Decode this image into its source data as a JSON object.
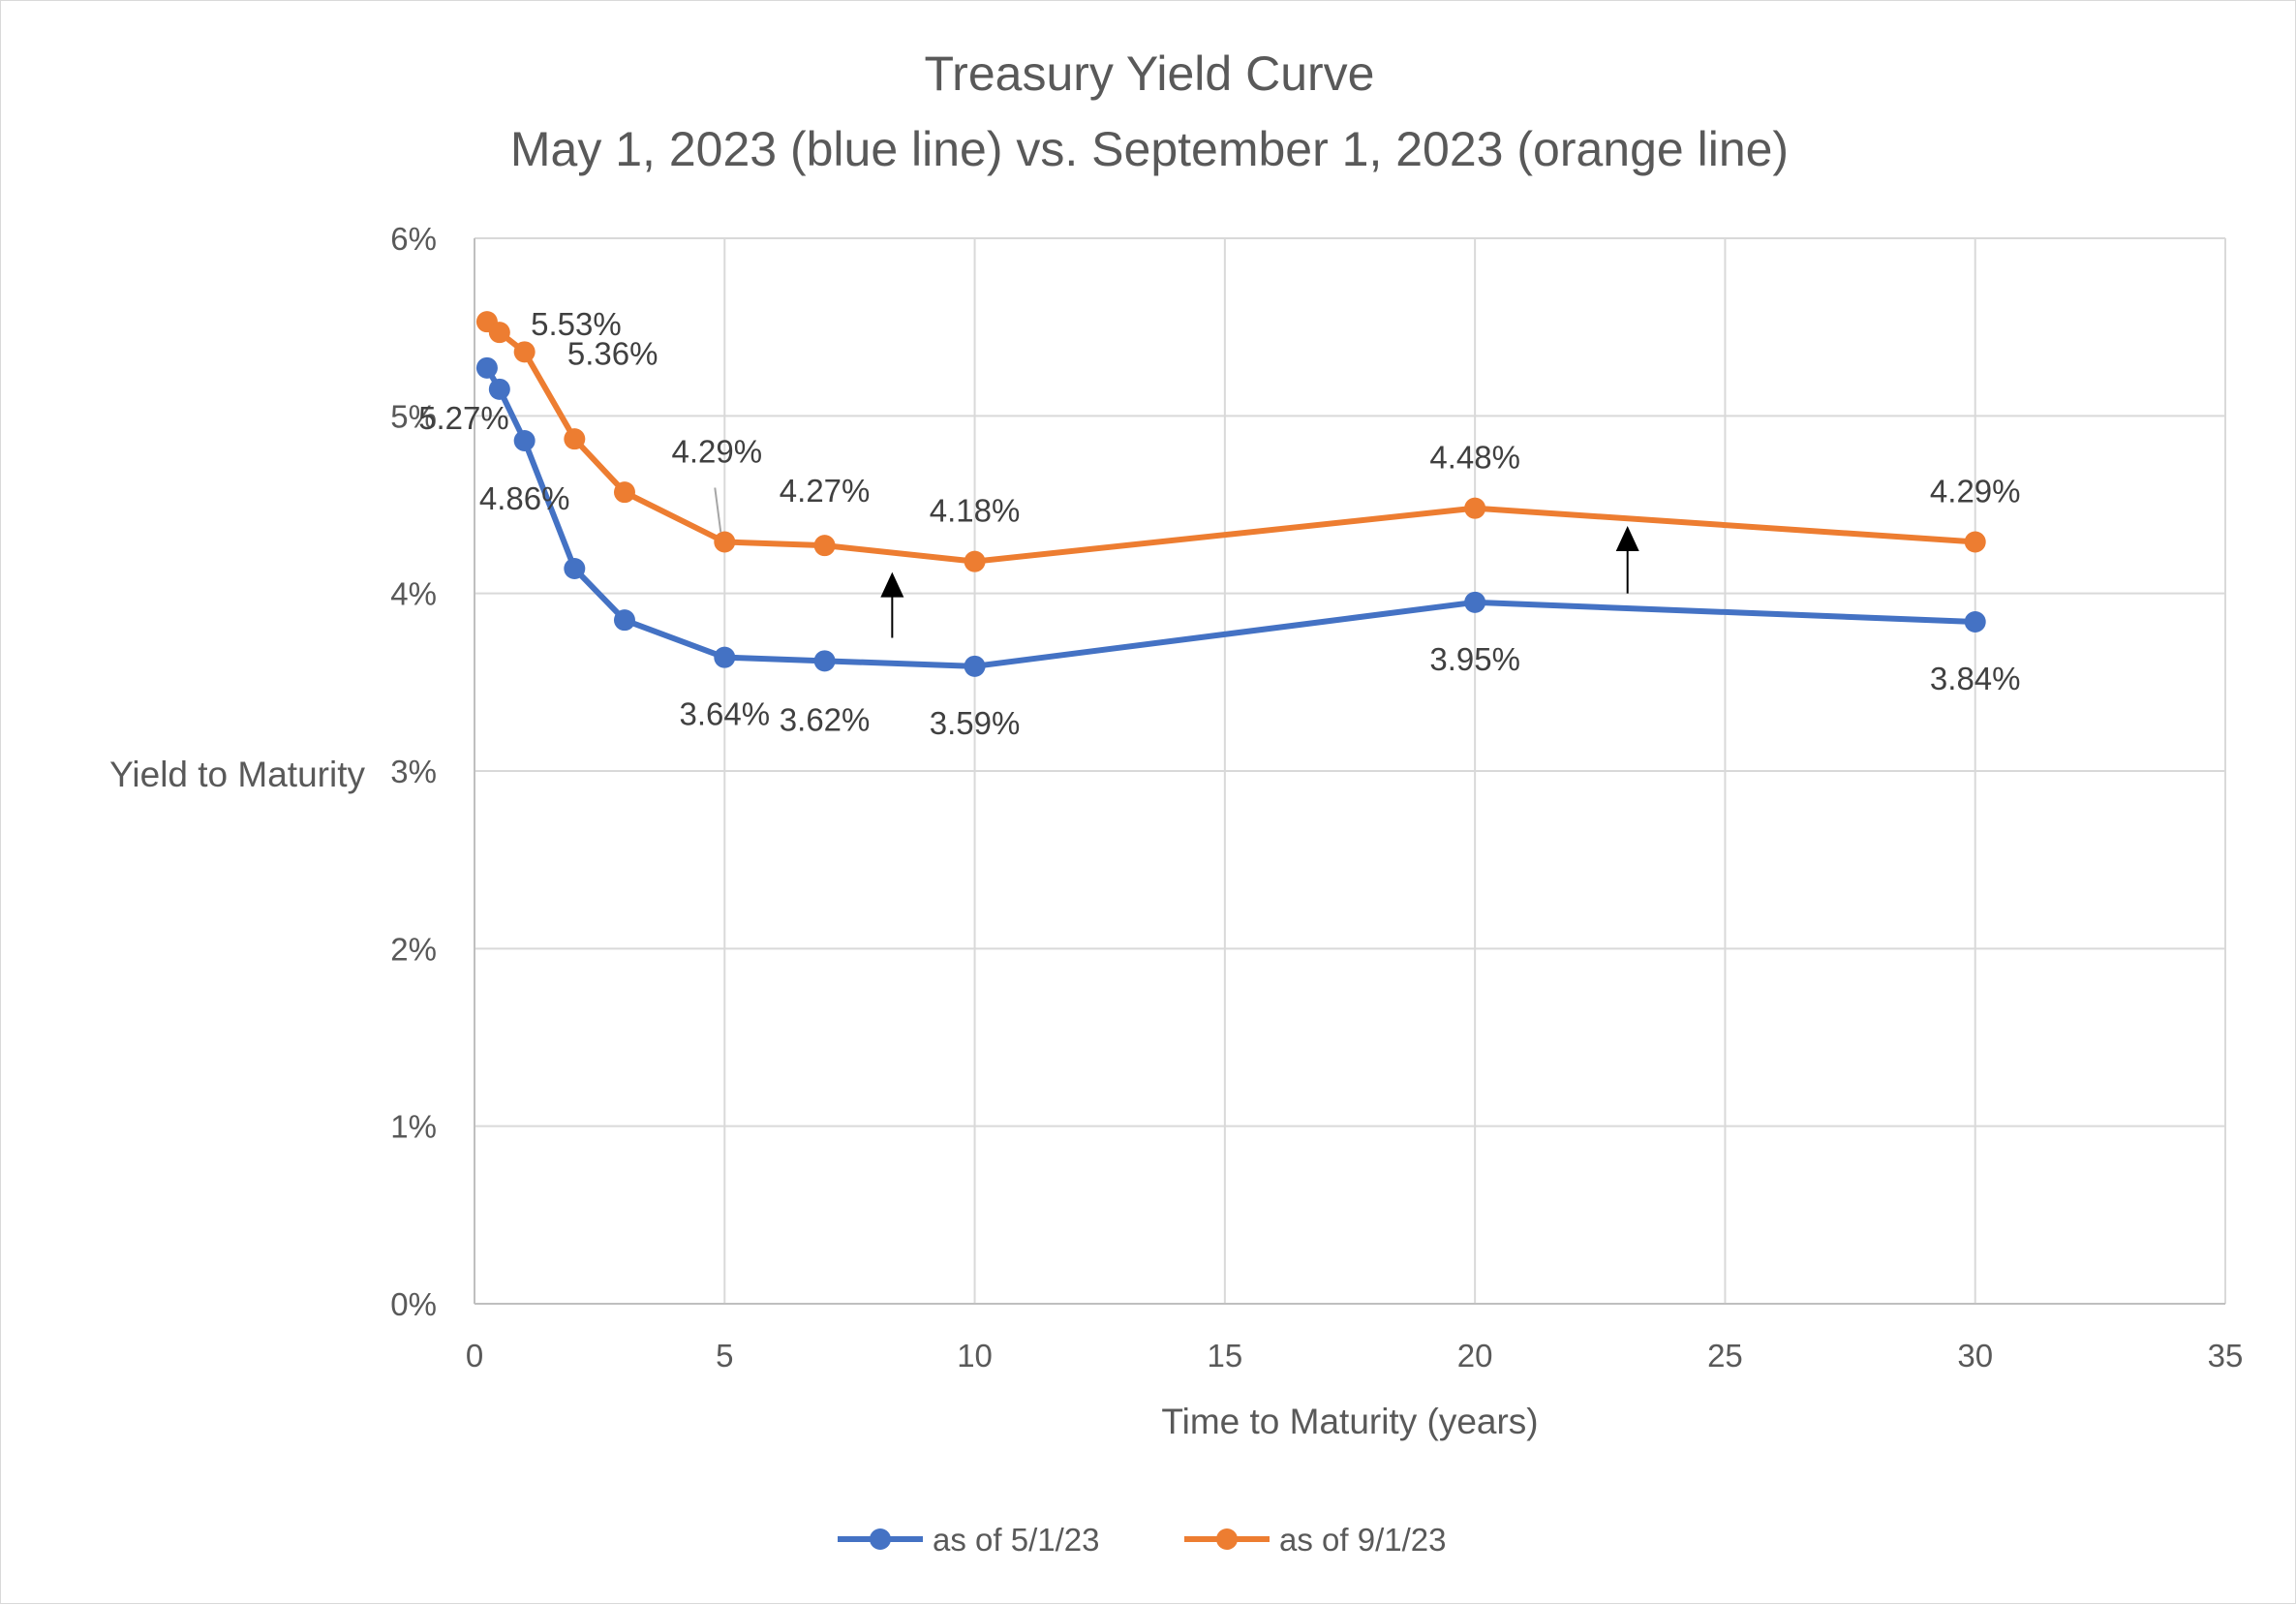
{
  "chart_data": {
    "type": "line",
    "title": "Treasury Yield Curve",
    "subtitle": "May 1, 2023 (blue line) vs. September 1, 2023 (orange line)",
    "xlabel": "Time to Maturity (years)",
    "ylabel": "Yield to Maturity",
    "xlim": [
      0,
      35
    ],
    "ylim": [
      0,
      6
    ],
    "x_ticks": [
      "0",
      "5",
      "10",
      "15",
      "20",
      "25",
      "30",
      "35"
    ],
    "y_ticks": [
      "0%",
      "1%",
      "2%",
      "3%",
      "4%",
      "5%",
      "6%"
    ],
    "grid": true,
    "legend_position": "bottom",
    "series": [
      {
        "name": "as of 5/1/23",
        "color": "#4472C4",
        "x": [
          0.25,
          0.5,
          1,
          2,
          3,
          5,
          7,
          10,
          20,
          30
        ],
        "values": [
          5.27,
          5.15,
          4.86,
          4.14,
          3.85,
          3.64,
          3.62,
          3.59,
          3.95,
          3.84
        ],
        "labels": [
          {
            "index": 0,
            "text": "5.27%"
          },
          {
            "index": 2,
            "text": "4.86%"
          },
          {
            "index": 5,
            "text": "3.64%"
          },
          {
            "index": 6,
            "text": "3.62%"
          },
          {
            "index": 7,
            "text": "3.59%"
          },
          {
            "index": 8,
            "text": "3.95%"
          },
          {
            "index": 9,
            "text": "3.84%"
          }
        ]
      },
      {
        "name": "as of 9/1/23",
        "color": "#ED7D31",
        "x": [
          0.25,
          0.5,
          1,
          2,
          3,
          5,
          7,
          10,
          20,
          30
        ],
        "values": [
          5.53,
          5.47,
          5.36,
          4.87,
          4.57,
          4.29,
          4.27,
          4.18,
          4.48,
          4.29
        ],
        "labels": [
          {
            "index": 0,
            "text": "5.53%"
          },
          {
            "index": 2,
            "text": "5.36%"
          },
          {
            "index": 5,
            "text": "4.29%"
          },
          {
            "index": 6,
            "text": "4.27%"
          },
          {
            "index": 7,
            "text": "4.18%"
          },
          {
            "index": 8,
            "text": "4.48%"
          },
          {
            "index": 9,
            "text": "4.29%"
          }
        ]
      }
    ],
    "annotations": [
      {
        "type": "arrow-up",
        "x": 8.35,
        "y_from": 3.75,
        "y_to": 4.12
      },
      {
        "type": "arrow-up",
        "x": 23.05,
        "y_from": 4.0,
        "y_to": 4.38
      }
    ]
  }
}
